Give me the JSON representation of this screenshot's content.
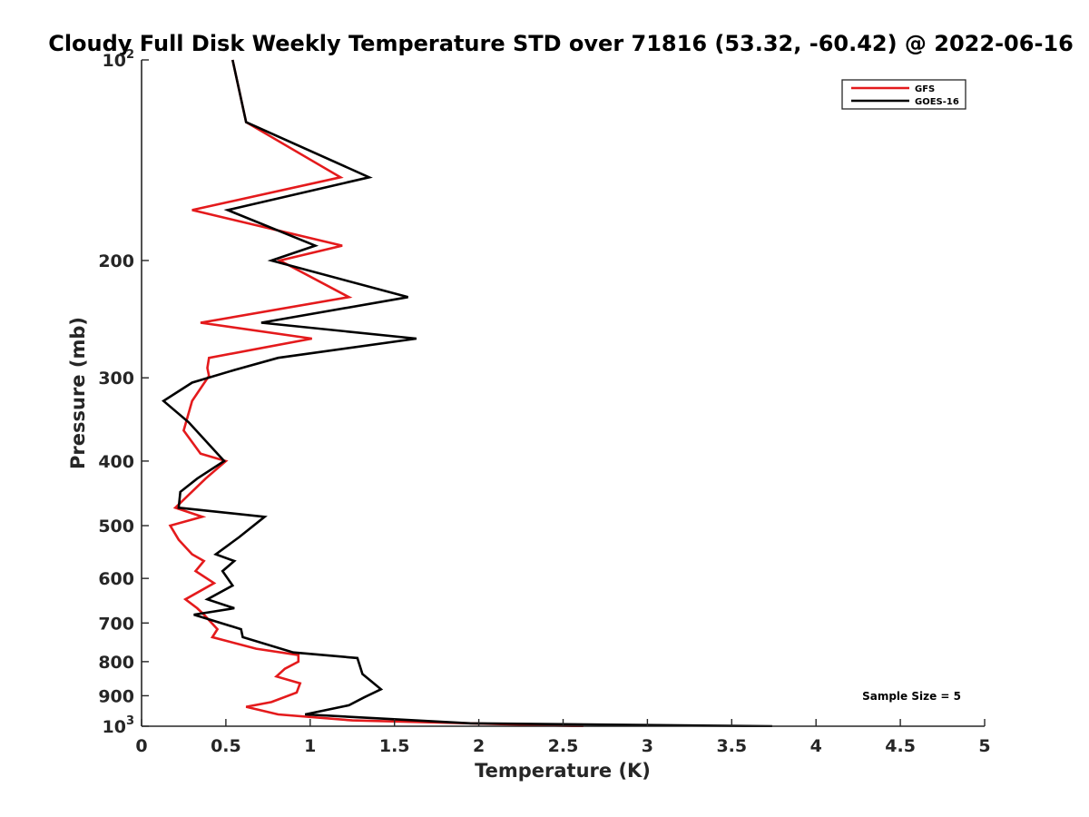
{
  "chart_data": {
    "type": "line",
    "title": "Cloudy Full Disk Weekly Temperature STD over 71816 (53.32, -60.42) @ 2022-06-16",
    "xlabel": "Temperature (K)",
    "ylabel": "Pressure (mb)",
    "xlim": [
      0,
      5
    ],
    "ylim": [
      100,
      1000
    ],
    "yscale": "log",
    "y_reversed": true,
    "grid": false,
    "legend_position": "top-right",
    "x_ticks": [
      0,
      0.5,
      1,
      1.5,
      2,
      2.5,
      3,
      3.5,
      4,
      4.5,
      5
    ],
    "x_tick_labels": [
      "0",
      "0.5",
      "1",
      "1.5",
      "2",
      "2.5",
      "3",
      "3.5",
      "4",
      "4.5",
      "5"
    ],
    "y_ticks": [
      {
        "value": 100,
        "base": "10",
        "exp": "2"
      },
      {
        "value": 200,
        "label": "200"
      },
      {
        "value": 300,
        "label": "300"
      },
      {
        "value": 400,
        "label": "400"
      },
      {
        "value": 500,
        "label": "500"
      },
      {
        "value": 600,
        "label": "600"
      },
      {
        "value": 700,
        "label": "700"
      },
      {
        "value": 800,
        "label": "800"
      },
      {
        "value": 900,
        "label": "900"
      },
      {
        "value": 1000,
        "base": "10",
        "exp": "3"
      }
    ],
    "annotation": "Sample Size = 5",
    "series": [
      {
        "name": "GFS",
        "color": "#e41a1c",
        "points": [
          [
            0.54,
            100
          ],
          [
            0.62,
            124
          ],
          [
            1.18,
            150
          ],
          [
            0.3,
            168
          ],
          [
            1.19,
            190
          ],
          [
            0.82,
            200
          ],
          [
            1.23,
            227
          ],
          [
            0.35,
            248
          ],
          [
            1.01,
            262
          ],
          [
            0.4,
            280
          ],
          [
            0.39,
            290
          ],
          [
            0.4,
            298
          ],
          [
            0.3,
            325
          ],
          [
            0.25,
            360
          ],
          [
            0.35,
            390
          ],
          [
            0.5,
            400
          ],
          [
            0.38,
            425
          ],
          [
            0.2,
            470
          ],
          [
            0.36,
            485
          ],
          [
            0.17,
            500
          ],
          [
            0.22,
            525
          ],
          [
            0.3,
            552
          ],
          [
            0.37,
            565
          ],
          [
            0.32,
            585
          ],
          [
            0.43,
            610
          ],
          [
            0.26,
            645
          ],
          [
            0.33,
            665
          ],
          [
            0.37,
            680
          ],
          [
            0.45,
            715
          ],
          [
            0.42,
            735
          ],
          [
            0.68,
            765
          ],
          [
            0.93,
            782
          ],
          [
            0.93,
            800
          ],
          [
            0.85,
            820
          ],
          [
            0.8,
            842
          ],
          [
            0.94,
            862
          ],
          [
            0.92,
            890
          ],
          [
            0.77,
            920
          ],
          [
            0.62,
            935
          ],
          [
            0.81,
            960
          ],
          [
            1.25,
            980
          ],
          [
            2.62,
            1000
          ]
        ]
      },
      {
        "name": "GOES-16",
        "color": "#000000",
        "points": [
          [
            0.54,
            100
          ],
          [
            0.62,
            124
          ],
          [
            1.35,
            150
          ],
          [
            0.51,
            168
          ],
          [
            1.03,
            190
          ],
          [
            0.77,
            200
          ],
          [
            1.58,
            227
          ],
          [
            0.71,
            248
          ],
          [
            1.63,
            262
          ],
          [
            0.81,
            280
          ],
          [
            0.55,
            292
          ],
          [
            0.3,
            305
          ],
          [
            0.13,
            325
          ],
          [
            0.28,
            350
          ],
          [
            0.49,
            400
          ],
          [
            0.33,
            425
          ],
          [
            0.23,
            445
          ],
          [
            0.22,
            470
          ],
          [
            0.73,
            485
          ],
          [
            0.58,
            520
          ],
          [
            0.44,
            552
          ],
          [
            0.55,
            565
          ],
          [
            0.48,
            585
          ],
          [
            0.54,
            615
          ],
          [
            0.39,
            645
          ],
          [
            0.55,
            665
          ],
          [
            0.31,
            680
          ],
          [
            0.59,
            715
          ],
          [
            0.6,
            735
          ],
          [
            0.9,
            775
          ],
          [
            1.28,
            790
          ],
          [
            1.31,
            835
          ],
          [
            1.36,
            855
          ],
          [
            1.42,
            880
          ],
          [
            1.32,
            905
          ],
          [
            1.23,
            930
          ],
          [
            0.97,
            960
          ],
          [
            1.95,
            990
          ],
          [
            3.74,
            1000
          ]
        ]
      }
    ]
  }
}
